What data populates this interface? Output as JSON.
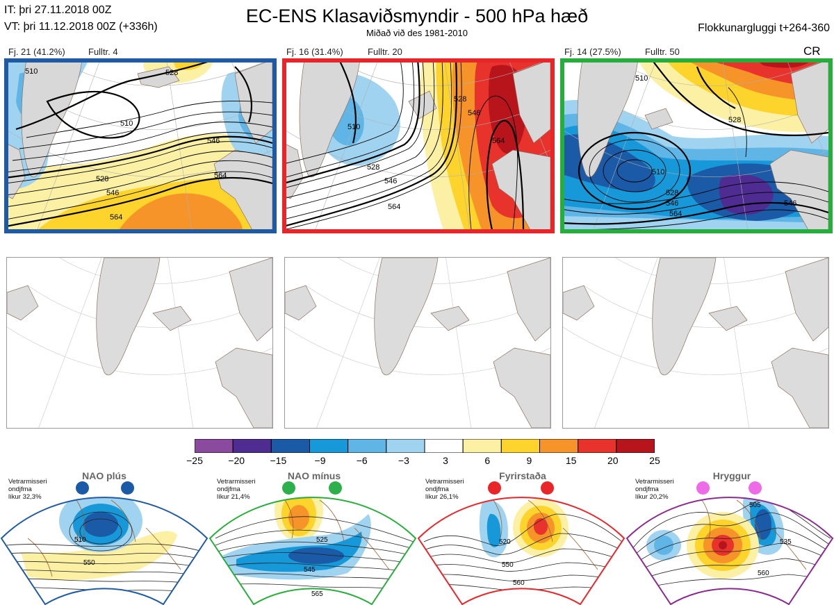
{
  "header": {
    "it_line": "IT: þri 27.11.2018 00Z",
    "vt_line": "VT: þri 11.12.2018 00Z  (+336h)",
    "title": "EC-ENS Klasaviðsmyndir - 500 hPa hæð",
    "subtitle": "Miðað við des 1981-2010",
    "window_label": "Flokkunargluggi t+264-360"
  },
  "clusters": [
    {
      "label": "Fj. 21 (41.2%)",
      "rep_label": "Fulltr. 4",
      "frame_color": "#1f5aa3",
      "tag": "",
      "contour_labels": [
        "510",
        "528",
        "546",
        "564",
        "528",
        "546",
        "564",
        "510"
      ]
    },
    {
      "label": "Fj. 16 (31.4%)",
      "rep_label": "Fulltr. 20",
      "frame_color": "#e8262a",
      "tag": "",
      "contour_labels": [
        "528",
        "546",
        "564",
        "510",
        "528",
        "546",
        "564"
      ]
    },
    {
      "label": "Fj. 14 (27.5%)",
      "rep_label": "Fulltr. 50",
      "frame_color": "#27ad3c",
      "tag": "CR",
      "contour_labels": [
        "510",
        "528",
        "546",
        "510",
        "528",
        "546",
        "564"
      ]
    }
  ],
  "colorbar": {
    "ticks": [
      "−25",
      "−20",
      "−15",
      "−9",
      "−6",
      "−3",
      "3",
      "6",
      "9",
      "15",
      "20",
      "25"
    ],
    "colors": [
      "#8a4a9e",
      "#4e2c92",
      "#1a5aa6",
      "#1799d9",
      "#5fb5e6",
      "#9fd3f0",
      "#ffffff",
      "#fcf0a4",
      "#fcd42b",
      "#f6942a",
      "#e8322c",
      "#b7141c"
    ]
  },
  "weather_regimes": [
    {
      "name": "NAO plús",
      "note": "Vetrarmisseri\nondjfma\nlíkur 32,3%",
      "dot_color": "#1a5aa6",
      "border": "#1f5aa3",
      "contour_labels": [
        "510",
        "550"
      ]
    },
    {
      "name": "NAO mínus",
      "note": "Vetrarmisseri\nondjfma\nlíkur 21,4%",
      "dot_color": "#2db04b",
      "border": "#27ad3c",
      "contour_labels": [
        "525",
        "545",
        "565"
      ]
    },
    {
      "name": "Fyrirstaða",
      "note": "Vetrarmisseri\nondjfma\nlíkur 26,1%",
      "dot_color": "#e8262a",
      "border": "#e8262a",
      "contour_labels": [
        "520",
        "550",
        "560"
      ]
    },
    {
      "name": "Hryggur",
      "note": "Vetrarmisseri\nondjfma\nlíkur 20,2%",
      "dot_color": "#ee6be8",
      "border": "#8a2a8e",
      "contour_labels": [
        "505",
        "535",
        "560"
      ]
    }
  ]
}
